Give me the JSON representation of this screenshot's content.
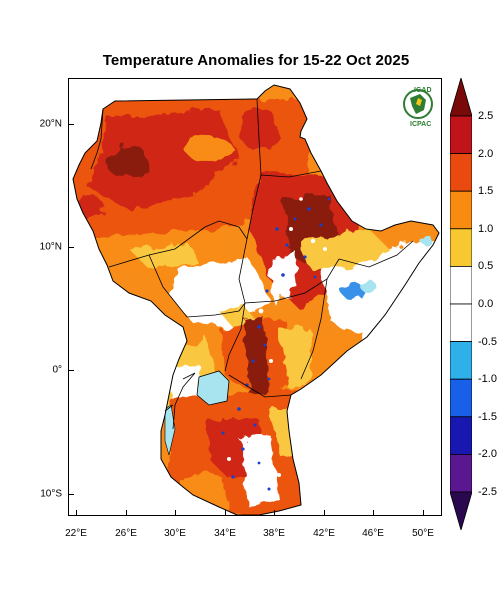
{
  "title": "Temperature Anomalies for 15-22 Oct 2025",
  "logo": {
    "top_text": "IGAD",
    "bottom_text": "ICPAC"
  },
  "axes": {
    "y_labels": [
      "20°N",
      "10°N",
      "0°",
      "10°S"
    ],
    "x_labels": [
      "22°E",
      "26°E",
      "30°E",
      "34°E",
      "38°E",
      "42°E",
      "46°E",
      "50°E"
    ]
  },
  "colorbar": {
    "labels": [
      "2.5",
      "2.0",
      "1.5",
      "1.0",
      "0.5",
      "0.0",
      "-0.5",
      "-1.0",
      "-1.5",
      "-2.0",
      "-2.5"
    ],
    "colors": [
      "#7a0a0a",
      "#c0141a",
      "#e84a10",
      "#f88c10",
      "#f8c830",
      "#ffffff",
      "#ffffff",
      "#30b0e8",
      "#1860e8",
      "#1818b0",
      "#5a1890",
      "#2a0850"
    ]
  },
  "palette": {
    "dark_red": "#8a1e10",
    "red": "#d02818",
    "orange_red": "#ec5410",
    "orange": "#f88c18",
    "yellow": "#fac840",
    "light_blue": "#a8e4f0",
    "blue": "#3890e8",
    "dark_blue": "#1840c8"
  }
}
